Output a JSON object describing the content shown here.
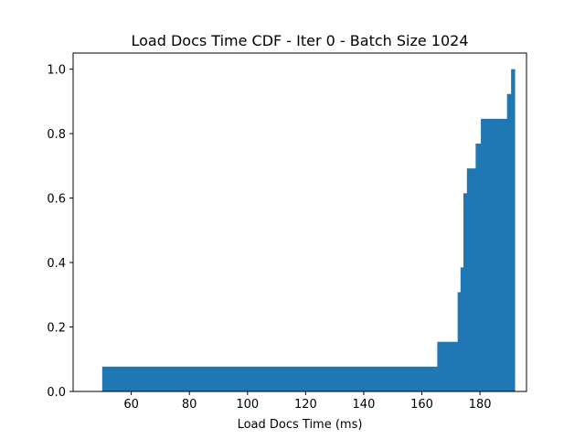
{
  "chart_data": {
    "type": "bar",
    "title": "Load Docs Time CDF - Iter 0 - Batch Size 1024",
    "xlabel": "Load Docs Time (ms)",
    "ylabel": "",
    "xlim": [
      40,
      196
    ],
    "ylim": [
      0,
      1.05
    ],
    "xticks": [
      60,
      80,
      100,
      120,
      140,
      160,
      180
    ],
    "yticks": [
      0.0,
      0.2,
      0.4,
      0.6,
      0.8,
      1.0
    ],
    "grid": false,
    "bar_color": "#1f77b4",
    "bins": [
      {
        "x0": 50.0,
        "x1": 165.3,
        "value": 0.077
      },
      {
        "x0": 165.3,
        "x1": 172.3,
        "value": 0.154
      },
      {
        "x0": 172.3,
        "x1": 173.3,
        "value": 0.308
      },
      {
        "x0": 173.3,
        "x1": 174.3,
        "value": 0.385
      },
      {
        "x0": 174.3,
        "x1": 175.5,
        "value": 0.615
      },
      {
        "x0": 175.5,
        "x1": 178.5,
        "value": 0.692
      },
      {
        "x0": 178.5,
        "x1": 180.3,
        "value": 0.769
      },
      {
        "x0": 180.3,
        "x1": 189.3,
        "value": 0.846
      },
      {
        "x0": 189.3,
        "x1": 190.7,
        "value": 0.923
      },
      {
        "x0": 190.7,
        "x1": 192.0,
        "value": 1.0
      }
    ]
  }
}
